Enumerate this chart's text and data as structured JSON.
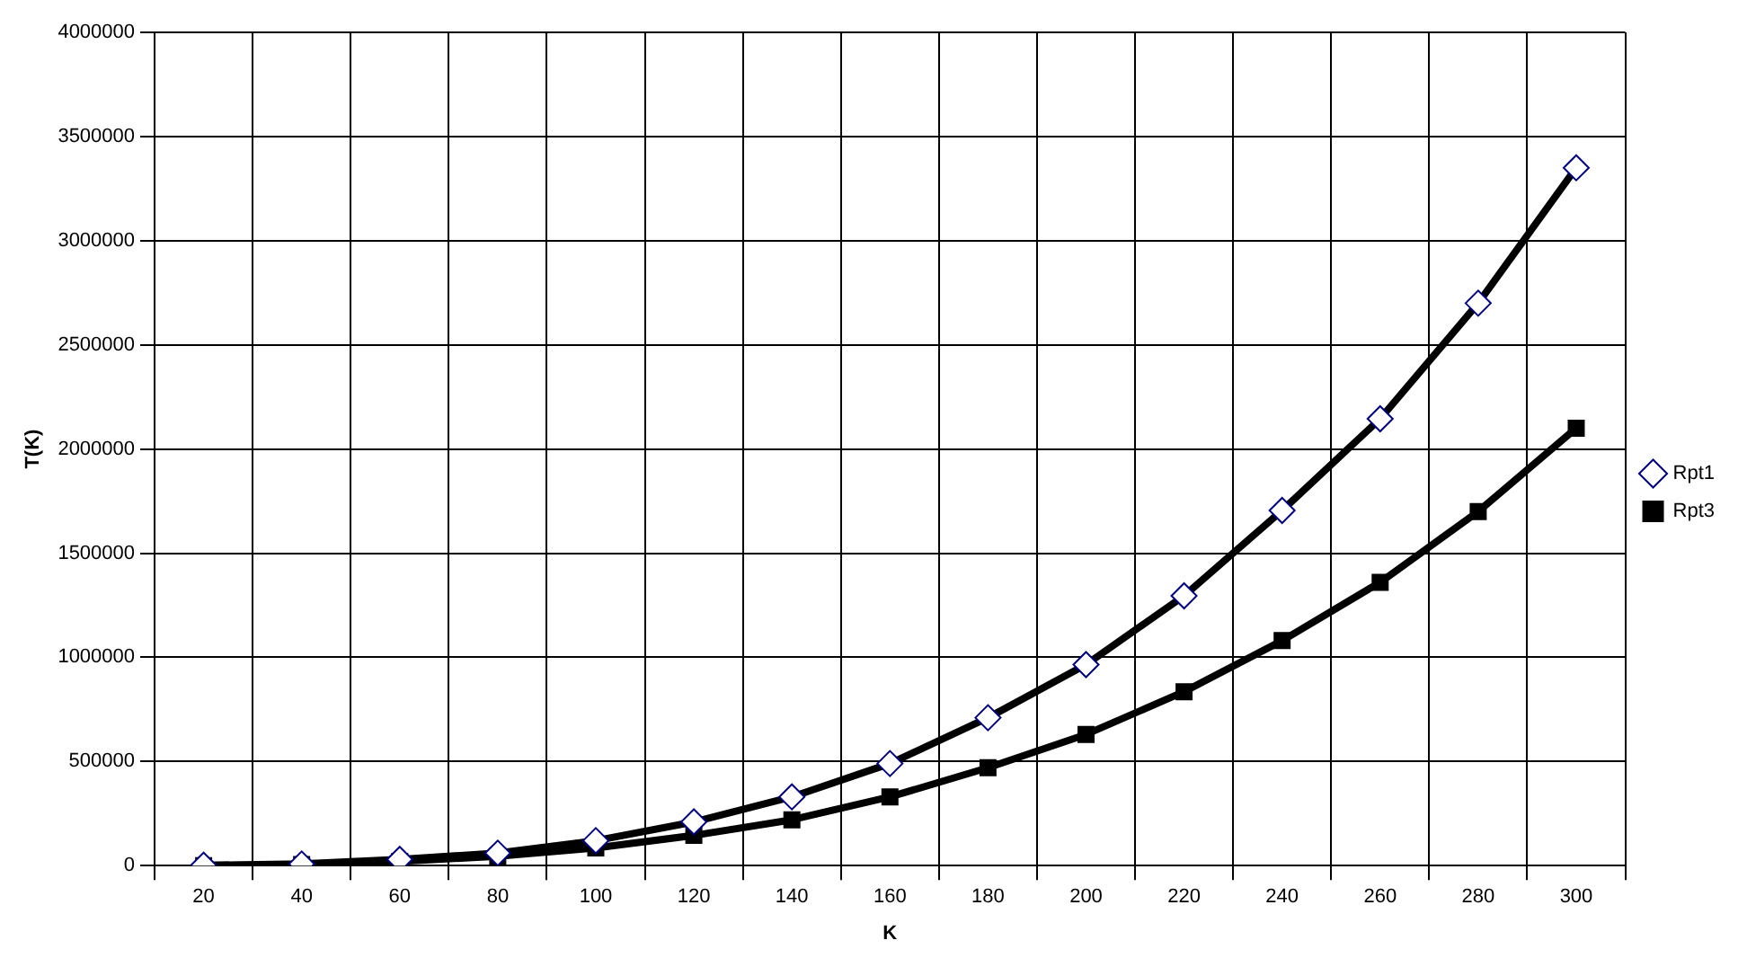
{
  "chart_data": {
    "type": "line",
    "xlabel": "K",
    "ylabel": "T(K)",
    "categories": [
      "20",
      "40",
      "60",
      "80",
      "100",
      "120",
      "140",
      "160",
      "180",
      "200",
      "220",
      "240",
      "260",
      "280",
      "300"
    ],
    "series": [
      {
        "name": "Rpt1",
        "color": "#000000",
        "marker": "diamond",
        "values": [
          2000,
          8000,
          30000,
          60000,
          120000,
          210000,
          330000,
          490000,
          710000,
          965000,
          1295000,
          1705000,
          2145000,
          2700000,
          3350000
        ]
      },
      {
        "name": "Rpt3",
        "color": "#000000",
        "marker": "square",
        "values": [
          0,
          5000,
          20000,
          45000,
          85000,
          145000,
          220000,
          330000,
          470000,
          630000,
          835000,
          1080000,
          1360000,
          1700000,
          2100000
        ]
      }
    ],
    "ylim": [
      0,
      4000000
    ],
    "yticks": [
      0,
      500000,
      1000000,
      1500000,
      2000000,
      2500000,
      3000000,
      3500000,
      4000000
    ],
    "grid": true,
    "legend": "right"
  }
}
